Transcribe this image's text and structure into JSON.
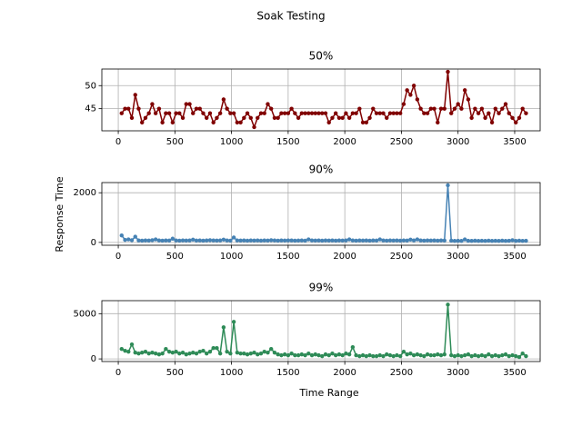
{
  "title": "Soak Testing",
  "x_label": "Time Range",
  "y_label": "Response Time",
  "chart_data": [
    {
      "type": "line",
      "title": "50%",
      "series": [
        {
          "name": "50%",
          "color": "#800000",
          "x": [
            30,
            60,
            90,
            120,
            150,
            180,
            210,
            240,
            270,
            300,
            330,
            360,
            390,
            420,
            450,
            480,
            510,
            540,
            570,
            600,
            630,
            660,
            690,
            720,
            750,
            780,
            810,
            840,
            870,
            900,
            930,
            960,
            990,
            1020,
            1050,
            1080,
            1110,
            1140,
            1170,
            1200,
            1230,
            1260,
            1290,
            1320,
            1350,
            1380,
            1410,
            1440,
            1470,
            1500,
            1530,
            1560,
            1590,
            1620,
            1650,
            1680,
            1710,
            1740,
            1770,
            1800,
            1830,
            1860,
            1890,
            1920,
            1950,
            1980,
            2010,
            2040,
            2070,
            2100,
            2130,
            2160,
            2190,
            2220,
            2250,
            2280,
            2310,
            2340,
            2370,
            2400,
            2430,
            2460,
            2490,
            2520,
            2550,
            2580,
            2610,
            2640,
            2670,
            2700,
            2730,
            2760,
            2790,
            2820,
            2850,
            2880,
            2910,
            2940,
            2970,
            3000,
            3030,
            3060,
            3090,
            3120,
            3150,
            3180,
            3210,
            3240,
            3270,
            3300,
            3330,
            3360,
            3390,
            3420,
            3450,
            3480,
            3510,
            3540,
            3570,
            3600
          ],
          "values": [
            44,
            45,
            45,
            43,
            48,
            45,
            42,
            43,
            44,
            46,
            44,
            45,
            42,
            44,
            44,
            42,
            44,
            44,
            43,
            46,
            46,
            44,
            45,
            45,
            44,
            43,
            44,
            42,
            43,
            44,
            47,
            45,
            44,
            44,
            42,
            42,
            43,
            44,
            43,
            41,
            43,
            44,
            44,
            46,
            45,
            43,
            43,
            44,
            44,
            44,
            45,
            44,
            43,
            44,
            44,
            44,
            44,
            44,
            44,
            44,
            44,
            42,
            43,
            44,
            43,
            43,
            44,
            43,
            44,
            44,
            45,
            42,
            42,
            43,
            45,
            44,
            44,
            44,
            43,
            44,
            44,
            44,
            44,
            46,
            49,
            48,
            50,
            47,
            45,
            44,
            44,
            45,
            45,
            42,
            45,
            45,
            53,
            44,
            45,
            46,
            45,
            49,
            47,
            43,
            45,
            44,
            45,
            43,
            44,
            42,
            45,
            44,
            45,
            46,
            44,
            43,
            42,
            43,
            45,
            44
          ]
        }
      ],
      "xlim": [
        -145,
        3725
      ],
      "ylim": [
        40.2,
        53.6
      ],
      "xticks": [
        0,
        500,
        1000,
        1500,
        2000,
        2500,
        3000,
        3500
      ],
      "yticks": [
        45,
        50
      ],
      "grid": true
    },
    {
      "type": "line",
      "title": "90%",
      "series": [
        {
          "name": "90%",
          "color": "#4682b4",
          "x": [
            30,
            60,
            90,
            120,
            150,
            180,
            210,
            240,
            270,
            300,
            330,
            360,
            390,
            420,
            450,
            480,
            510,
            540,
            570,
            600,
            630,
            660,
            690,
            720,
            750,
            780,
            810,
            840,
            870,
            900,
            930,
            960,
            990,
            1020,
            1050,
            1080,
            1110,
            1140,
            1170,
            1200,
            1230,
            1260,
            1290,
            1320,
            1350,
            1380,
            1410,
            1440,
            1470,
            1500,
            1530,
            1560,
            1590,
            1620,
            1650,
            1680,
            1710,
            1740,
            1770,
            1800,
            1830,
            1860,
            1890,
            1920,
            1950,
            1980,
            2010,
            2040,
            2070,
            2100,
            2130,
            2160,
            2190,
            2220,
            2250,
            2280,
            2310,
            2340,
            2370,
            2400,
            2430,
            2460,
            2490,
            2520,
            2550,
            2580,
            2610,
            2640,
            2670,
            2700,
            2730,
            2760,
            2790,
            2820,
            2850,
            2880,
            2910,
            2940,
            2970,
            3000,
            3030,
            3060,
            3090,
            3120,
            3150,
            3180,
            3210,
            3240,
            3270,
            3300,
            3330,
            3360,
            3390,
            3420,
            3450,
            3480,
            3510,
            3540,
            3570,
            3600
          ],
          "values": [
            280,
            100,
            120,
            90,
            230,
            80,
            70,
            80,
            75,
            90,
            120,
            80,
            70,
            80,
            75,
            150,
            80,
            70,
            80,
            75,
            80,
            110,
            75,
            80,
            70,
            80,
            90,
            80,
            75,
            80,
            110,
            80,
            70,
            200,
            80,
            75,
            80,
            70,
            80,
            75,
            80,
            70,
            80,
            75,
            90,
            80,
            70,
            80,
            75,
            80,
            80,
            70,
            75,
            80,
            70,
            120,
            80,
            75,
            80,
            70,
            80,
            75,
            80,
            70,
            80,
            75,
            80,
            120,
            80,
            70,
            80,
            75,
            80,
            70,
            80,
            75,
            120,
            80,
            70,
            80,
            75,
            80,
            70,
            80,
            75,
            110,
            80,
            120,
            80,
            70,
            80,
            75,
            80,
            70,
            80,
            75,
            2300,
            70,
            60,
            65,
            60,
            120,
            65,
            60,
            70,
            60,
            65,
            60,
            70,
            60,
            65,
            60,
            70,
            60,
            65,
            90,
            60,
            70,
            60,
            65
          ]
        }
      ],
      "xlim": [
        -145,
        3725
      ],
      "ylim": [
        -115,
        2410
      ],
      "xticks": [
        0,
        500,
        1000,
        1500,
        2000,
        2500,
        3000,
        3500
      ],
      "yticks": [
        0,
        2000
      ],
      "grid": true
    },
    {
      "type": "line",
      "title": "99%",
      "series": [
        {
          "name": "99%",
          "color": "#2e8b57",
          "x": [
            30,
            60,
            90,
            120,
            150,
            180,
            210,
            240,
            270,
            300,
            330,
            360,
            390,
            420,
            450,
            480,
            510,
            540,
            570,
            600,
            630,
            660,
            690,
            720,
            750,
            780,
            810,
            840,
            870,
            900,
            930,
            960,
            990,
            1020,
            1050,
            1080,
            1110,
            1140,
            1170,
            1200,
            1230,
            1260,
            1290,
            1320,
            1350,
            1380,
            1410,
            1440,
            1470,
            1500,
            1530,
            1560,
            1590,
            1620,
            1650,
            1680,
            1710,
            1740,
            1770,
            1800,
            1830,
            1860,
            1890,
            1920,
            1950,
            1980,
            2010,
            2040,
            2070,
            2100,
            2130,
            2160,
            2190,
            2220,
            2250,
            2280,
            2310,
            2340,
            2370,
            2400,
            2430,
            2460,
            2490,
            2520,
            2550,
            2580,
            2610,
            2640,
            2670,
            2700,
            2730,
            2760,
            2790,
            2820,
            2850,
            2880,
            2910,
            2940,
            2970,
            3000,
            3030,
            3060,
            3090,
            3120,
            3150,
            3180,
            3210,
            3240,
            3270,
            3300,
            3330,
            3360,
            3390,
            3420,
            3450,
            3480,
            3510,
            3540,
            3570,
            3600
          ],
          "values": [
            1100,
            900,
            800,
            1600,
            700,
            600,
            700,
            800,
            600,
            700,
            600,
            500,
            600,
            1100,
            800,
            700,
            800,
            600,
            700,
            500,
            600,
            700,
            600,
            800,
            900,
            600,
            800,
            1200,
            1200,
            600,
            3500,
            800,
            600,
            4100,
            700,
            600,
            600,
            500,
            600,
            700,
            500,
            600,
            800,
            700,
            1100,
            700,
            500,
            400,
            500,
            400,
            600,
            400,
            400,
            500,
            400,
            600,
            400,
            500,
            400,
            300,
            500,
            400,
            600,
            400,
            500,
            400,
            600,
            500,
            1300,
            400,
            300,
            400,
            300,
            400,
            300,
            300,
            400,
            300,
            500,
            400,
            300,
            400,
            300,
            800,
            500,
            600,
            400,
            500,
            400,
            300,
            500,
            400,
            400,
            500,
            400,
            500,
            6000,
            400,
            300,
            400,
            300,
            400,
            500,
            300,
            400,
            300,
            400,
            300,
            500,
            300,
            400,
            300,
            400,
            500,
            300,
            400,
            300,
            200,
            600,
            300
          ]
        }
      ],
      "xlim": [
        -145,
        3725
      ],
      "ylim": [
        -290,
        6440
      ],
      "xticks": [
        0,
        500,
        1000,
        1500,
        2000,
        2500,
        3000,
        3500
      ],
      "yticks": [
        0,
        5000
      ],
      "grid": true
    }
  ]
}
